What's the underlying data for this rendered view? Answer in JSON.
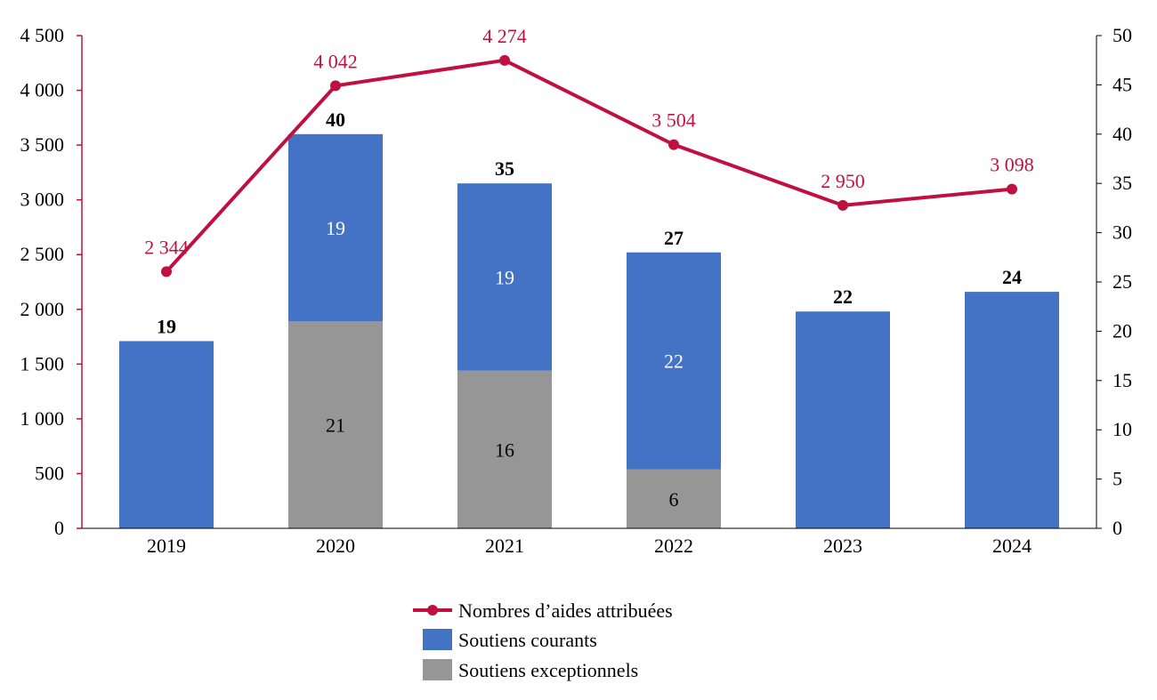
{
  "chart_data": {
    "type": "bar",
    "title": "",
    "categories": [
      "2019",
      "2020",
      "2021",
      "2022",
      "2023",
      "2024"
    ],
    "series": [
      {
        "name": "Soutiens exceptionnels",
        "kind": "bar",
        "axis": "right",
        "color": "#969696",
        "values": [
          null,
          21,
          16,
          6,
          null,
          null
        ],
        "labels": [
          "",
          "21",
          "16",
          "6",
          "",
          ""
        ]
      },
      {
        "name": "Soutiens courants",
        "kind": "bar",
        "axis": "right",
        "color": "#4472C4",
        "values": [
          19,
          19,
          19,
          22,
          22,
          24
        ],
        "labels": [
          "",
          "19",
          "19",
          "22",
          "",
          ""
        ]
      },
      {
        "name": "Nombres d’aides attribuées",
        "kind": "line",
        "axis": "left",
        "color": "#C0103F",
        "values": [
          2344,
          4042,
          4274,
          3504,
          2950,
          3098
        ],
        "labels": [
          "2 344",
          "4 042",
          "4 274",
          "3 504",
          "2 950",
          "3 098"
        ]
      }
    ],
    "bar_totals": [
      "19",
      "40",
      "35",
      "27",
      "22",
      "24"
    ],
    "left_axis": {
      "range": [
        0,
        4500
      ],
      "ticks": [
        "0",
        "500",
        "1 000",
        "1 500",
        "2 000",
        "2 500",
        "3 000",
        "3 500",
        "4 000",
        "4 500"
      ]
    },
    "right_axis": {
      "range": [
        0,
        50
      ],
      "ticks": [
        "0",
        "5",
        "10",
        "15",
        "20",
        "25",
        "30",
        "35",
        "40",
        "45",
        "50"
      ]
    },
    "legend": {
      "placement": "bottom",
      "entries": [
        "Nombres d’aides attribuées",
        "Soutiens courants",
        "Soutiens exceptionnels"
      ]
    },
    "grid": false
  }
}
